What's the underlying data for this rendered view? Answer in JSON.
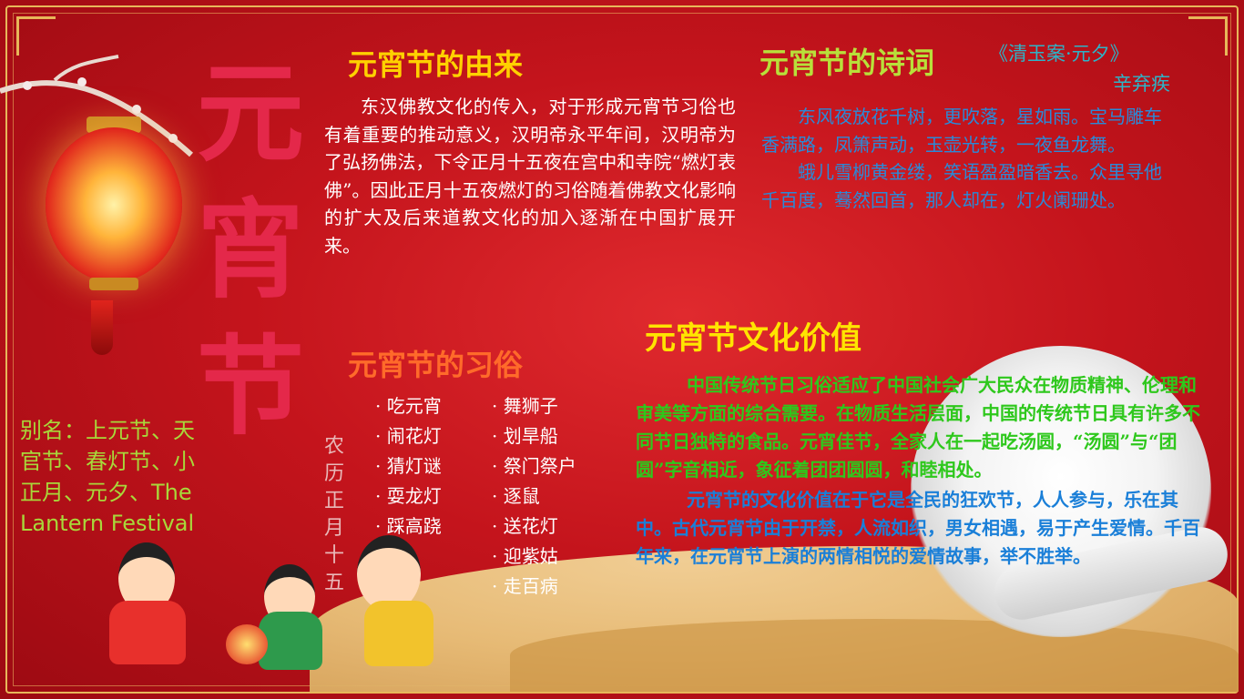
{
  "big_title": [
    "元",
    "宵",
    "节"
  ],
  "lunar_date": [
    "农",
    "历",
    "正",
    "月",
    "十",
    "五"
  ],
  "alias": "别名：上元节、天官节、春灯节、小正月、元夕、The Lantern Festival",
  "origin": {
    "heading": "元宵节的由来",
    "text": "东汉佛教文化的传入，对于形成元宵节习俗也有着重要的推动意义，汉明帝永平年间，汉明帝为了弘扬佛法，下令正月十五夜在宫中和寺院“燃灯表佛”。因此正月十五夜燃灯的习俗随着佛教文化影响的扩大及后来道教文化的加入逐渐在中国扩展开来。"
  },
  "poem": {
    "heading": "元宵节的诗词",
    "title": "《清玉案·元夕》",
    "author": "辛弃疾",
    "para1": "东风夜放花千树，更吹落，星如雨。宝马雕车香满路，凤箫声动，玉壶光转，一夜鱼龙舞。",
    "para2": "蛾儿雪柳黄金缕，笑语盈盈暗香去。众里寻他千百度，蓦然回首，那人却在，灯火阑珊处。"
  },
  "customs": {
    "heading": "元宵节的习俗",
    "col1": [
      "吃元宵",
      "闹花灯",
      "猜灯谜",
      "耍龙灯",
      "踩高跷"
    ],
    "col2": [
      "舞狮子",
      "划旱船",
      "祭门祭户",
      "逐鼠",
      "送花灯",
      "迎紫姑",
      "走百病"
    ]
  },
  "value": {
    "heading": "元宵节文化价值",
    "para1": "中国传统节日习俗适应了中国社会广大民众在物质精神、伦理和审美等方面的综合需要。在物质生活层面，中国的传统节日具有许多不同节日独特的食品。元宵佳节，全家人在一起吃汤圆，“汤圆”与“团圆”字音相近，象征着团团圆圆，和睦相处。",
    "para2": "元宵节的文化价值在于它是全民的狂欢节，人人参与，乐在其中。古代元宵节由于开禁，人流如织，男女相遇，易于产生爱情。千百年来，在元宵节上演的两情相悦的爱情故事，举不胜举。"
  },
  "colors": {
    "background": "#c4141c",
    "origin_heading": "#ffd100",
    "poem_heading": "#b8e03a",
    "custom_heading": "#ff6a2a",
    "value_heading": "#ffe400",
    "alias_text": "#a8d83a",
    "big_title": "#e4284a"
  }
}
